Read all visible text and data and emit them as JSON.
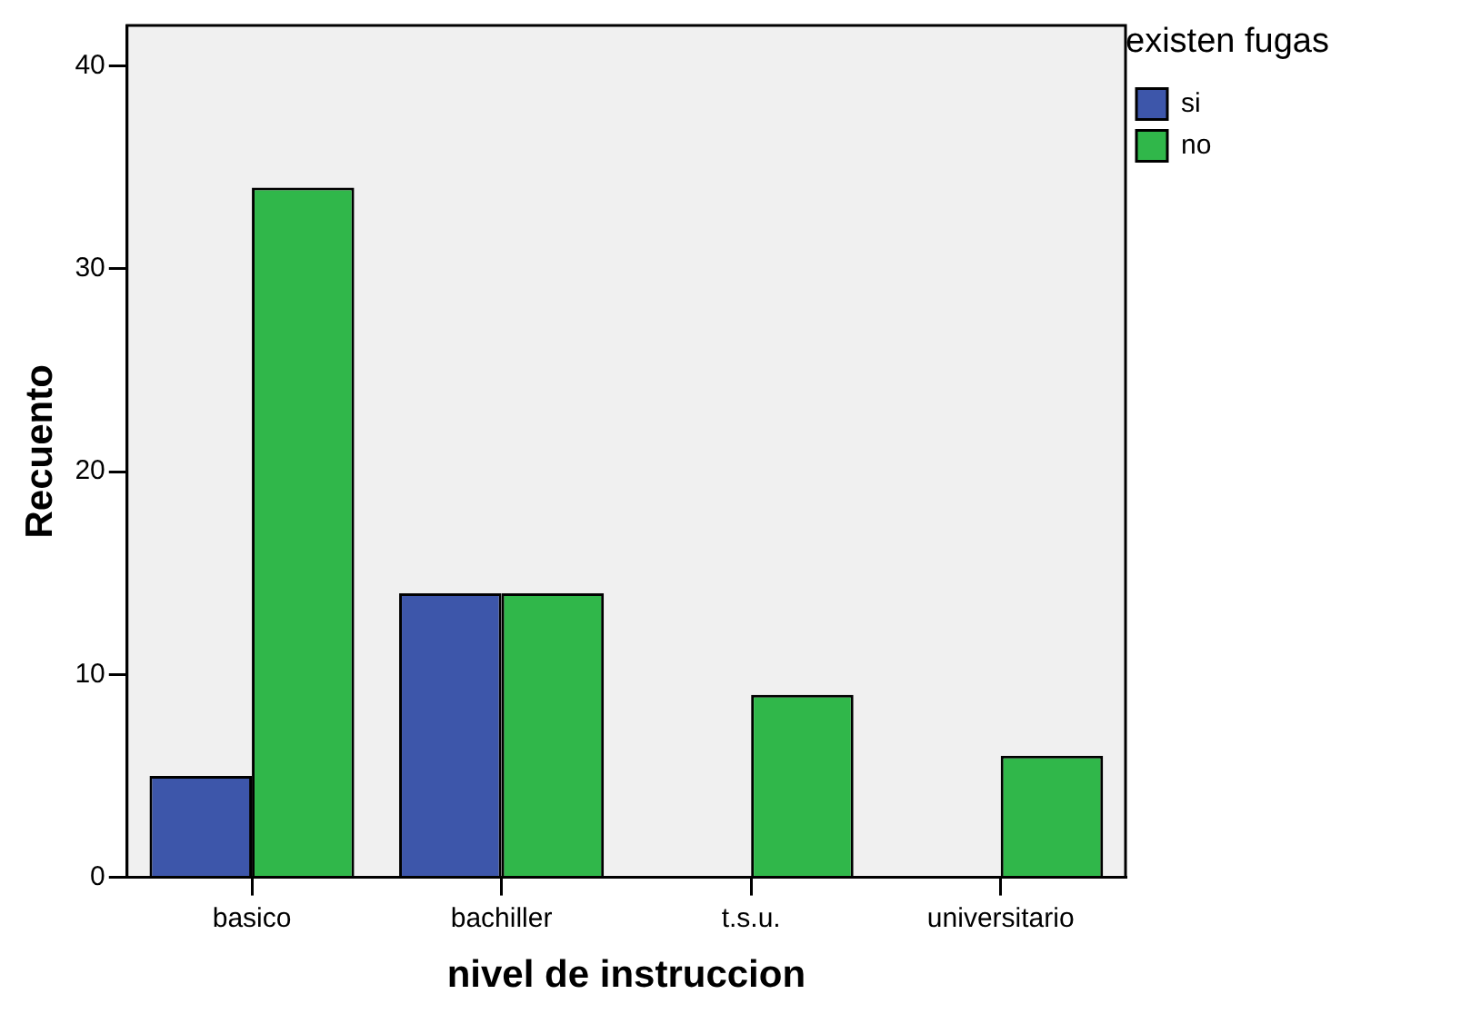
{
  "chart_data": {
    "type": "bar",
    "xlabel": "nivel de instruccion",
    "ylabel": "Recuento",
    "legend_title": "existen fugas",
    "categories": [
      "basico",
      "bachiller",
      "t.s.u.",
      "universitario"
    ],
    "series": [
      {
        "name": "si",
        "color": "#3d56aa",
        "values": [
          5,
          14,
          null,
          null
        ]
      },
      {
        "name": "no",
        "color": "#30b74a",
        "values": [
          34,
          14,
          9,
          6
        ]
      }
    ],
    "ylim": [
      0,
      42
    ],
    "yticks": [
      0,
      10,
      20,
      30,
      40
    ],
    "grid": false,
    "legend": "top right"
  }
}
